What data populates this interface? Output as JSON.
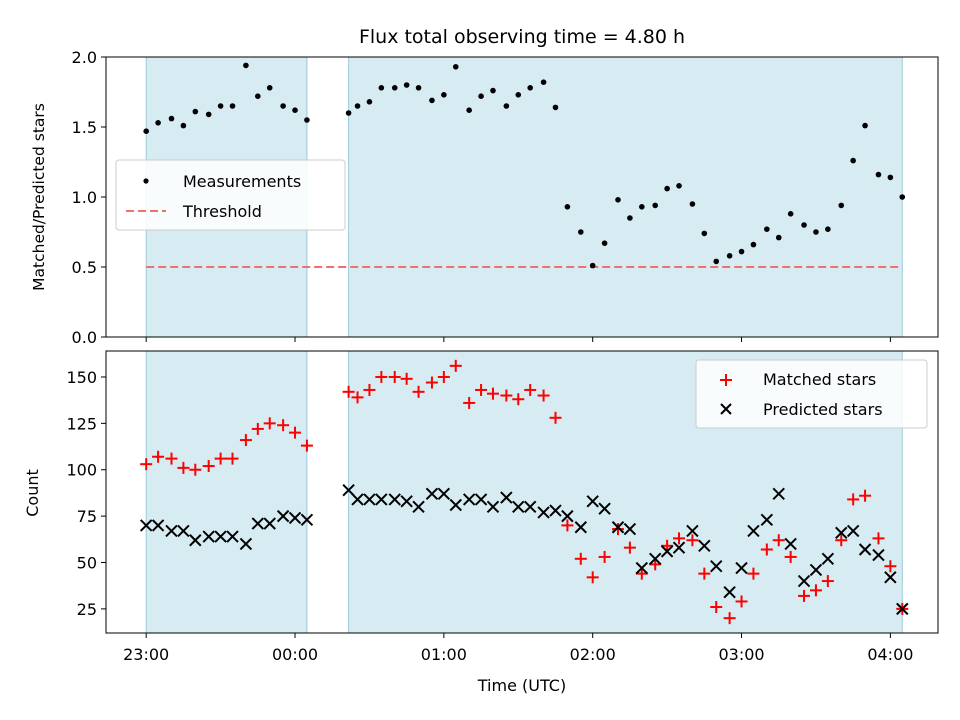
{
  "chart_data": [
    {
      "type": "scatter",
      "title": "Flux total observing time = 4.80 h",
      "ylabel": "Matched/Predicted stars",
      "xlabel": "",
      "xlim": [
        -0.27,
        5.32
      ],
      "ylim": [
        0,
        2.0
      ],
      "yticks": [
        0.0,
        0.5,
        1.0,
        1.5,
        2.0
      ],
      "ytick_labels": [
        "0.0",
        "0.5",
        "1.0",
        "1.5",
        "2.0"
      ],
      "shaded_intervals": [
        [
          0.0,
          1.08
        ],
        [
          1.36,
          5.08
        ]
      ],
      "threshold": {
        "name": "Threshold",
        "value": 0.5,
        "color": "#f07070"
      },
      "legend_position": "center-left",
      "series": [
        {
          "name": "Measurements",
          "color": "#000000",
          "x": [
            0.0,
            0.08,
            0.17,
            0.25,
            0.33,
            0.42,
            0.5,
            0.58,
            0.67,
            0.75,
            0.83,
            0.92,
            1.0,
            1.08,
            1.36,
            1.42,
            1.5,
            1.58,
            1.67,
            1.75,
            1.83,
            1.92,
            2.0,
            2.08,
            2.17,
            2.25,
            2.33,
            2.42,
            2.5,
            2.58,
            2.67,
            2.75,
            2.83,
            2.92,
            3.0,
            3.08,
            3.17,
            3.25,
            3.33,
            3.42,
            3.5,
            3.58,
            3.67,
            3.75,
            3.83,
            3.92,
            4.0,
            4.08,
            4.17,
            4.25,
            4.33,
            4.42,
            4.5,
            4.58,
            4.67,
            4.75,
            4.83,
            4.92,
            5.0,
            5.08
          ],
          "y": [
            1.47,
            1.53,
            1.56,
            1.51,
            1.61,
            1.59,
            1.65,
            1.65,
            1.94,
            1.72,
            1.78,
            1.65,
            1.62,
            1.55,
            1.6,
            1.65,
            1.68,
            1.78,
            1.78,
            1.8,
            1.78,
            1.69,
            1.73,
            1.93,
            1.62,
            1.72,
            1.76,
            1.65,
            1.73,
            1.78,
            1.82,
            1.64,
            0.93,
            0.75,
            0.51,
            0.67,
            0.98,
            0.85,
            0.93,
            0.94,
            1.06,
            1.08,
            0.95,
            0.74,
            0.54,
            0.58,
            0.61,
            0.66,
            0.77,
            0.71,
            0.88,
            0.8,
            0.75,
            0.77,
            0.94,
            1.26,
            1.51,
            1.16,
            1.14,
            1.0
          ]
        }
      ]
    },
    {
      "type": "scatter",
      "title": "",
      "ylabel": "Count",
      "xlabel": "Time (UTC)",
      "xlim": [
        -0.27,
        5.32
      ],
      "ylim": [
        12,
        164
      ],
      "yticks": [
        25,
        50,
        75,
        100,
        125,
        150
      ],
      "ytick_labels": [
        "25",
        "50",
        "75",
        "100",
        "125",
        "150"
      ],
      "xticks": [
        0,
        1,
        2,
        3,
        4,
        5
      ],
      "xtick_labels": [
        "23:00",
        "00:00",
        "01:00",
        "02:00",
        "03:00",
        "04:00"
      ],
      "shaded_intervals": [
        [
          0.0,
          1.08
        ],
        [
          1.36,
          5.08
        ]
      ],
      "legend_position": "top-right",
      "series": [
        {
          "name": "Matched stars",
          "marker": "plus",
          "color": "#ff0000",
          "x": [
            0.0,
            0.08,
            0.17,
            0.25,
            0.33,
            0.42,
            0.5,
            0.58,
            0.67,
            0.75,
            0.83,
            0.92,
            1.0,
            1.08,
            1.36,
            1.42,
            1.5,
            1.58,
            1.67,
            1.75,
            1.83,
            1.92,
            2.0,
            2.08,
            2.17,
            2.25,
            2.33,
            2.42,
            2.5,
            2.58,
            2.67,
            2.75,
            2.83,
            2.92,
            3.0,
            3.08,
            3.17,
            3.25,
            3.33,
            3.42,
            3.5,
            3.58,
            3.67,
            3.75,
            3.83,
            3.92,
            4.0,
            4.08,
            4.17,
            4.25,
            4.33,
            4.42,
            4.5,
            4.58,
            4.67,
            4.75,
            4.83,
            4.92,
            5.0,
            5.08
          ],
          "y": [
            103,
            107,
            106,
            101,
            100,
            102,
            106,
            106,
            116,
            122,
            125,
            124,
            120,
            113,
            142,
            139,
            143,
            150,
            150,
            149,
            142,
            147,
            150,
            156,
            136,
            143,
            141,
            140,
            138,
            143,
            140,
            128,
            70,
            52,
            42,
            53,
            68,
            58,
            44,
            49,
            59,
            63,
            62,
            44,
            26,
            20,
            29,
            44,
            57,
            62,
            53,
            32,
            35,
            40,
            62,
            84,
            86,
            63,
            48,
            25
          ]
        },
        {
          "name": "Predicted stars",
          "marker": "x",
          "color": "#000000",
          "x": [
            0.0,
            0.08,
            0.17,
            0.25,
            0.33,
            0.42,
            0.5,
            0.58,
            0.67,
            0.75,
            0.83,
            0.92,
            1.0,
            1.08,
            1.36,
            1.42,
            1.5,
            1.58,
            1.67,
            1.75,
            1.83,
            1.92,
            2.0,
            2.08,
            2.17,
            2.25,
            2.33,
            2.42,
            2.5,
            2.58,
            2.67,
            2.75,
            2.83,
            2.92,
            3.0,
            3.08,
            3.17,
            3.25,
            3.33,
            3.42,
            3.5,
            3.58,
            3.67,
            3.75,
            3.83,
            3.92,
            4.0,
            4.08,
            4.17,
            4.25,
            4.33,
            4.42,
            4.5,
            4.58,
            4.67,
            4.75,
            4.83,
            4.92,
            5.0,
            5.08
          ],
          "y": [
            70,
            70,
            67,
            67,
            62,
            64,
            64,
            64,
            60,
            71,
            71,
            75,
            74,
            73,
            89,
            84,
            84,
            84,
            84,
            83,
            80,
            87,
            87,
            81,
            84,
            84,
            80,
            85,
            80,
            80,
            77,
            78,
            75,
            69,
            83,
            79,
            69,
            68,
            47,
            52,
            56,
            58,
            67,
            59,
            48,
            34,
            47,
            67,
            73,
            87,
            60,
            40,
            46,
            52,
            66,
            67,
            57,
            54,
            42,
            25
          ]
        }
      ]
    }
  ]
}
